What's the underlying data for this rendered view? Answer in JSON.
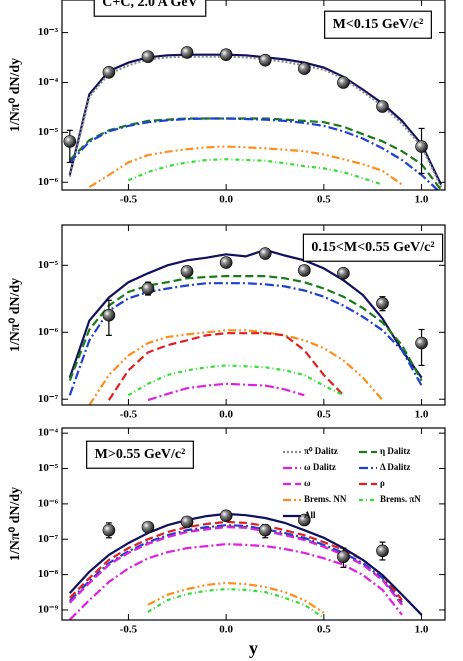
{
  "chart_data": [
    {
      "type": "line",
      "log": true,
      "grid": false,
      "annotations": [
        "C+C, 2.0 A GeV",
        "M<0.15 GeV/c²"
      ],
      "y_label": "1/Nπ⁰ dN/dy",
      "xlim": [
        -0.84,
        1.12
      ],
      "xticks": [
        -0.5,
        {
          "value": 0,
          "label": "0.0"
        },
        0.5,
        {
          "value": 1,
          "label": "1.0"
        }
      ],
      "ylim": [
        7e-07,
        0.0045
      ],
      "yticks": [
        {
          "value": 0.001,
          "label": "10⁻³"
        },
        {
          "value": 0.0001,
          "label": "10⁻⁴"
        },
        {
          "value": 1e-05,
          "label": "10⁻⁵"
        },
        {
          "value": 1e-06,
          "label": "10⁻⁶"
        }
      ],
      "x": [
        -0.8,
        -0.7,
        -0.6,
        -0.5,
        -0.4,
        -0.3,
        -0.2,
        -0.1,
        0,
        0.1,
        0.2,
        0.3,
        0.4,
        0.5,
        0.6,
        0.7,
        0.8,
        0.9,
        1.0,
        1.1
      ],
      "series": [
        {
          "color": "#101060",
          "dash": "solid",
          "values": [
            1.4e-06,
            5.8e-05,
            0.00017,
            0.00025,
            0.00032,
            0.00035,
            0.00036,
            0.00036,
            0.00036,
            0.00035,
            0.00032,
            0.00029,
            0.00025,
            0.0002,
            0.00013,
            7.2e-05,
            3.8e-05,
            1.7e-05,
            5.8e-06,
            9e-07
          ]
        },
        {
          "color": "#8a8a8a",
          "dash": "dotted",
          "values": [
            1.3e-06,
            5.2e-05,
            0.00015,
            0.00022,
            0.00029,
            0.00032,
            0.00033,
            0.00033,
            0.00033,
            0.00032,
            0.00029,
            0.00026,
            0.00022,
            0.00018,
            0.00012,
            6.5e-05,
            3.4e-05,
            1.5e-05,
            5.2e-06,
            8e-07
          ]
        },
        {
          "color": "#1a7a1a",
          "dash": "dashed",
          "values": [
            2.8e-06,
            7e-06,
            1.1e-05,
            1.4e-05,
            1.7e-05,
            1.8e-05,
            1.9e-05,
            1.9e-05,
            1.9e-05,
            1.9e-05,
            1.9e-05,
            1.8e-05,
            1.7e-05,
            1.6e-05,
            1.3e-05,
            9.2e-06,
            6.6e-06,
            4.2e-06,
            2.3e-06,
            7e-07
          ]
        },
        {
          "color": "#1f3fd0",
          "dash": "dashdot",
          "values": [
            2.5e-06,
            6.5e-06,
            1.05e-05,
            1.35e-05,
            1.6e-05,
            1.75e-05,
            1.85e-05,
            1.9e-05,
            1.9e-05,
            1.85e-05,
            1.8e-05,
            1.7e-05,
            1.55e-05,
            1.35e-05,
            1.05e-05,
            7.5e-06,
            4.8e-06,
            2.8e-06,
            1.4e-06,
            6e-07
          ]
        },
        {
          "color": "#ff8c1a",
          "dash": "dashdotdot",
          "values": [
            null,
            8e-07,
            1.4e-06,
            2.5e-06,
            3.5e-06,
            4.1e-06,
            4.6e-06,
            5e-06,
            5.2e-06,
            5e-06,
            4.8e-06,
            4.5e-06,
            4.2e-06,
            3.6e-06,
            2.9e-06,
            2.3e-06,
            1.7e-06,
            9e-07,
            null,
            null
          ]
        },
        {
          "color": "#33dd33",
          "dash": "dotdash",
          "values": [
            null,
            null,
            null,
            1.1e-06,
            1.6e-06,
            2.1e-06,
            2.5e-06,
            2.8e-06,
            2.9e-06,
            2.8e-06,
            2.7e-06,
            2.4e-06,
            2.1e-06,
            1.9e-06,
            1.6e-06,
            1.2e-06,
            9e-07,
            null,
            null,
            null
          ]
        }
      ],
      "points": {
        "x": [
          -0.8,
          -0.6,
          -0.4,
          -0.2,
          0,
          0.2,
          0.4,
          0.6,
          0.8,
          1.0
        ],
        "values": [
          6.6e-06,
          0.00016,
          0.00033,
          0.0004,
          0.00036,
          0.00028,
          0.00019,
          0.0001,
          3.3e-05,
          5.2e-06
        ],
        "lower": [
          2.5e-06,
          0.00014,
          0.00029,
          0.00036,
          0.00032,
          0.00025,
          0.00017,
          9e-05,
          2.9e-05,
          1.5e-06
        ],
        "upper": [
          1.1e-05,
          0.00018,
          0.00037,
          0.00045,
          0.0004,
          0.00031,
          0.00021,
          0.00011,
          3.7e-05,
          1.2e-05
        ]
      }
    },
    {
      "type": "line",
      "log": true,
      "grid": false,
      "annotations": [
        "0.15<M<0.55 GeV/c²"
      ],
      "y_label": "1/Nπ⁰ dN/dy",
      "xlim": [
        -0.84,
        1.12
      ],
      "xticks": [
        -0.5,
        {
          "value": 0,
          "label": "0.0"
        },
        0.5,
        {
          "value": 1,
          "label": "1.0"
        }
      ],
      "ylim": [
        8.2e-08,
        4e-05
      ],
      "yticks": [
        {
          "value": 1e-05,
          "label": "10⁻⁵"
        },
        {
          "value": 1e-06,
          "label": "10⁻⁶"
        },
        {
          "value": 1e-07,
          "label": "10⁻⁷"
        }
      ],
      "x": [
        -0.8,
        -0.7,
        -0.6,
        -0.5,
        -0.4,
        -0.3,
        -0.2,
        -0.1,
        0,
        0.1,
        0.2,
        0.3,
        0.4,
        0.5,
        0.6,
        0.7,
        0.8,
        0.9,
        1.0,
        1.1
      ],
      "series": [
        {
          "color": "#101060",
          "dash": "solid",
          "values": [
            2.1e-07,
            1.5e-06,
            3.3e-06,
            5.6e-06,
            7.6e-06,
            1e-05,
            1.19e-05,
            1.3e-05,
            1.46e-05,
            1.36e-05,
            1.7e-05,
            1.4e-05,
            1.19e-05,
            9e-06,
            6e-06,
            3.6e-06,
            1.6e-06,
            5.4e-07,
            2.1e-07,
            null
          ]
        },
        {
          "color": "#1a7a1a",
          "dash": "dashed",
          "values": [
            1.9e-07,
            1.1e-06,
            2.5e-06,
            4e-06,
            5e-06,
            5.6e-06,
            6.4e-06,
            6.7e-06,
            6.9e-06,
            6.9e-06,
            6.9e-06,
            6.4e-06,
            5.6e-06,
            4.5e-06,
            3.4e-06,
            2.3e-06,
            1.4e-06,
            6.4e-07,
            1.9e-07,
            null
          ]
        },
        {
          "color": "#1f3fd0",
          "dash": "dashdot",
          "values": [
            1.15e-07,
            7.6e-07,
            2.1e-06,
            3.2e-06,
            4e-06,
            4.5e-06,
            5e-06,
            5.4e-06,
            5.4e-06,
            5.4e-06,
            5.2e-06,
            4.85e-06,
            4.2e-06,
            3.4e-06,
            2.5e-06,
            1.7e-06,
            1.07e-06,
            5.4e-07,
            1.6e-07,
            null
          ]
        },
        {
          "color": "#ff8c1a",
          "dash": "dashdotdot",
          "values": [
            null,
            8.2e-08,
            2.3e-07,
            4.5e-07,
            6.9e-07,
            8.5e-07,
            9.3e-07,
            1e-06,
            1.07e-06,
            1.07e-06,
            1e-06,
            9e-07,
            7.6e-07,
            5.8e-07,
            3.8e-07,
            2.1e-07,
            9.7e-08,
            null,
            null,
            null
          ]
        },
        {
          "color": "#e02020",
          "dash": "dashed",
          "values": [
            null,
            null,
            9.7e-08,
            2.7e-07,
            5e-07,
            6.4e-07,
            7.6e-07,
            9e-07,
            9.7e-07,
            9.7e-07,
            9.7e-07,
            9e-07,
            5.4e-07,
            2.3e-07,
            1.15e-07,
            null,
            null,
            null,
            null,
            null
          ]
        },
        {
          "color": "#33dd33",
          "dash": "dotdash",
          "values": [
            null,
            null,
            null,
            1.15e-07,
            1.7e-07,
            2.3e-07,
            2.7e-07,
            3e-07,
            3.2e-07,
            3.1e-07,
            3e-07,
            2.7e-07,
            2.3e-07,
            1.6e-07,
            1.15e-07,
            null,
            null,
            null,
            null,
            null
          ]
        },
        {
          "color": "#e020e0",
          "dash": "dashdot",
          "values": [
            null,
            null,
            null,
            null,
            9.7e-08,
            1.2e-07,
            1.46e-07,
            1.6e-07,
            1.7e-07,
            1.65e-07,
            1.6e-07,
            1.4e-07,
            1.15e-07,
            null,
            null,
            null,
            null,
            null,
            null,
            null
          ]
        }
      ],
      "points": {
        "x": [
          -0.6,
          -0.4,
          -0.2,
          0,
          0.2,
          0.4,
          0.6,
          0.8,
          1.0
        ],
        "values": [
          1.8e-06,
          4.5e-06,
          8.1e-06,
          1.1e-05,
          1.5e-05,
          8.4e-06,
          7.6e-06,
          2.7e-06,
          6.9e-07
        ],
        "lower": [
          9e-07,
          3.6e-06,
          7.2e-06,
          1e-05,
          1.35e-05,
          7.5e-06,
          6.8e-06,
          2.1e-06,
          3.2e-07
        ],
        "upper": [
          3e-06,
          5.6e-06,
          9.1e-06,
          1.2e-05,
          1.65e-05,
          9.4e-06,
          8.5e-06,
          3.4e-06,
          1.1e-06
        ]
      }
    },
    {
      "type": "line",
      "log": true,
      "grid": false,
      "legend": "upper right",
      "annotations": [
        "M>0.55 GeV/c²"
      ],
      "y_label": "1/Nπ⁰ dN/dy",
      "x_label": "y",
      "xlim": [
        -0.84,
        1.12
      ],
      "xticks": [
        -0.5,
        {
          "value": 0,
          "label": "0.0"
        },
        0.5,
        {
          "value": 1,
          "label": "1.0"
        }
      ],
      "ylim": [
        5.2e-10,
        0.00014
      ],
      "yticks": [
        {
          "value": 0.0001,
          "label": "10⁻⁴"
        },
        {
          "value": 1e-05,
          "label": "10⁻⁵"
        },
        {
          "value": 1e-06,
          "label": "10⁻⁶"
        },
        {
          "value": 1e-07,
          "label": "10⁻⁷"
        },
        {
          "value": 1e-08,
          "label": "10⁻⁸"
        },
        {
          "value": 1e-09,
          "label": "10⁻⁹"
        }
      ],
      "x": [
        -0.8,
        -0.7,
        -0.6,
        -0.5,
        -0.4,
        -0.3,
        -0.2,
        -0.1,
        0,
        0.1,
        0.2,
        0.3,
        0.4,
        0.5,
        0.6,
        0.7,
        0.8,
        0.9,
        1.0,
        1.1
      ],
      "series": [
        {
          "name": "π⁰ Dalitz",
          "color": "#8a8a8a",
          "dash": "dotted",
          "values": [
            null,
            null,
            null,
            null,
            null,
            null,
            null,
            null,
            null,
            null,
            null,
            null,
            null,
            null,
            null,
            null,
            null,
            null,
            null,
            null
          ]
        },
        {
          "name": "η Dalitz",
          "color": "#1a7a1a",
          "dash": "dashed",
          "values": [
            1.6e-09,
            6e-09,
            1.9e-08,
            4.2e-08,
            7.5e-08,
            1.2e-07,
            1.6e-07,
            2e-07,
            2.3e-07,
            2.2e-07,
            1.7e-07,
            1.35e-07,
            1e-07,
            6.2e-08,
            3.7e-08,
            1.9e-08,
            7.2e-09,
            1.4e-09,
            null,
            null
          ]
        },
        {
          "name": "ω Dalitz",
          "color": "#e020e0",
          "dash": "dashdot",
          "values": [
            5.3e-10,
            1.9e-09,
            6.2e-09,
            1.5e-08,
            2.9e-08,
            4.3e-08,
            5.6e-08,
            6.4e-08,
            7.3e-08,
            6.9e-08,
            6.4e-08,
            5.3e-08,
            4.1e-08,
            2.9e-08,
            1.9e-08,
            9.7e-09,
            3.7e-09,
            7.3e-10,
            null,
            null
          ]
        },
        {
          "name": "Δ Dalitz",
          "color": "#1f3fd0",
          "dash": "dashdot",
          "values": [
            1.8e-09,
            6.6e-09,
            2.1e-08,
            4.6e-08,
            8.3e-08,
            1.3e-07,
            1.8e-07,
            2.2e-07,
            2.5e-07,
            2.4e-07,
            1.9e-07,
            1.5e-07,
            1.1e-07,
            6.9e-08,
            4.1e-08,
            2.1e-08,
            8e-09,
            1.6e-09,
            null,
            null
          ]
        },
        {
          "name": "ω",
          "color": "#e020e0",
          "dash": "dashed",
          "values": [
            1.6e-09,
            5.8e-09,
            1.9e-08,
            4.1e-08,
            7.4e-08,
            1.15e-07,
            1.6e-07,
            1.9e-07,
            2.2e-07,
            2.1e-07,
            1.7e-07,
            1.3e-07,
            9.5e-08,
            6.1e-08,
            3.6e-08,
            1.9e-08,
            7e-09,
            1.4e-09,
            null,
            null
          ]
        },
        {
          "name": "ρ",
          "color": "#e02020",
          "dash": "dashed",
          "values": [
            2.2e-09,
            8e-09,
            2.6e-08,
            5.6e-08,
            1e-07,
            1.6e-07,
            2.2e-07,
            2.7e-07,
            3.1e-07,
            2.9e-07,
            2.4e-07,
            1.8e-07,
            1.3e-07,
            8.3e-08,
            5e-08,
            2.6e-08,
            9.7e-09,
            1.9e-09,
            null,
            null
          ]
        },
        {
          "name": "Brems. NN",
          "color": "#ff8c1a",
          "dash": "dashdotdot",
          "values": [
            null,
            null,
            null,
            null,
            1.4e-09,
            2.7e-09,
            3.9e-09,
            5.1e-09,
            5.8e-09,
            5.4e-09,
            4.5e-09,
            3.2e-09,
            1.9e-09,
            8.3e-10,
            null,
            null,
            null,
            null,
            null,
            null
          ]
        },
        {
          "name": "Brems. πN",
          "color": "#33dd33",
          "dash": "dotdash",
          "values": [
            null,
            null,
            null,
            null,
            8.8e-10,
            1.9e-09,
            2.8e-09,
            3.5e-09,
            3.9e-09,
            3.7e-09,
            3.2e-09,
            2.2e-09,
            1.4e-09,
            6e-10,
            null,
            null,
            null,
            null,
            null,
            null
          ]
        },
        {
          "name": "All",
          "color": "#101060",
          "dash": "solid",
          "values": [
            3e-09,
            1.2e-08,
            3.6e-08,
            7.8e-08,
            1.5e-07,
            2.5e-07,
            3.5e-07,
            4.5e-07,
            5.2e-07,
            4.8e-07,
            4e-07,
            2.9e-07,
            1.8e-07,
            1.1e-07,
            5.6e-08,
            2.6e-08,
            9.7e-09,
            2.7e-09,
            7.3e-10,
            null
          ]
        }
      ],
      "points": {
        "x": [
          -0.6,
          -0.4,
          -0.2,
          0,
          0.2,
          0.4,
          0.6,
          0.8
        ],
        "values": [
          1.8e-07,
          2.2e-07,
          3.1e-07,
          4.6e-07,
          1.8e-07,
          3.5e-07,
          3.2e-08,
          4.7e-08
        ],
        "lower": [
          1.1e-07,
          1.6e-07,
          2.5e-07,
          3.8e-07,
          1.1e-07,
          2.9e-07,
          1.6e-08,
          2.6e-08
        ],
        "upper": [
          2.9e-07,
          2.9e-07,
          3.8e-07,
          5.6e-07,
          2.6e-07,
          4.2e-07,
          5.6e-08,
          8.3e-08
        ]
      }
    }
  ]
}
